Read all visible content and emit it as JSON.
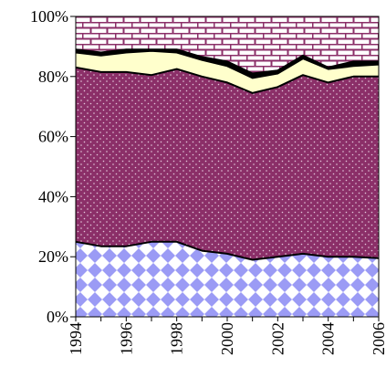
{
  "chart_data": {
    "type": "area",
    "stacked": "percent",
    "x": [
      1994,
      1995,
      1996,
      1997,
      1998,
      1999,
      2000,
      2001,
      2002,
      2003,
      2004,
      2005,
      2006
    ],
    "ylim": [
      0,
      100
    ],
    "x_tick_labels": [
      "1994",
      "1996",
      "1998",
      "2000",
      "2002",
      "2004",
      "2006"
    ],
    "y_tick_labels": [
      "0%",
      "20%",
      "40%",
      "60%",
      "80%",
      "100%"
    ],
    "x_tick_values": [
      1994,
      1996,
      1998,
      2000,
      2002,
      2004,
      2006
    ],
    "y_tick_values": [
      0,
      20,
      40,
      60,
      80,
      100
    ],
    "grid": false,
    "legend": "none",
    "title": "",
    "xlabel": "",
    "ylabel": "",
    "series": [
      {
        "values": [
          25,
          23.5,
          23.5,
          25,
          25,
          22,
          21,
          19,
          20,
          21,
          20,
          20,
          19.5
        ],
        "color": "#9b9bf5",
        "pattern": "diamond-checker"
      },
      {
        "values": [
          58,
          58,
          58,
          55.5,
          57.5,
          58,
          57,
          55.5,
          56.5,
          59.5,
          58,
          60,
          60.5
        ],
        "color": "#8b2f68",
        "pattern": "dots"
      },
      {
        "values": [
          5,
          5.5,
          6.5,
          8,
          5.5,
          5.5,
          5.5,
          5,
          4.5,
          5.5,
          4.5,
          3.5,
          4
        ],
        "color": "#ffffcc",
        "pattern": "solid"
      },
      {
        "values": [
          1,
          1,
          1,
          0.5,
          1,
          1,
          1.5,
          1.5,
          1,
          1,
          0.5,
          1.5,
          1
        ],
        "color": "#000000",
        "pattern": "solid"
      },
      {
        "values": [
          11,
          12,
          11,
          11,
          11,
          13.5,
          15,
          19,
          18,
          13,
          17,
          15,
          15
        ],
        "color": "#8b2f68",
        "pattern": "bricks"
      }
    ]
  }
}
